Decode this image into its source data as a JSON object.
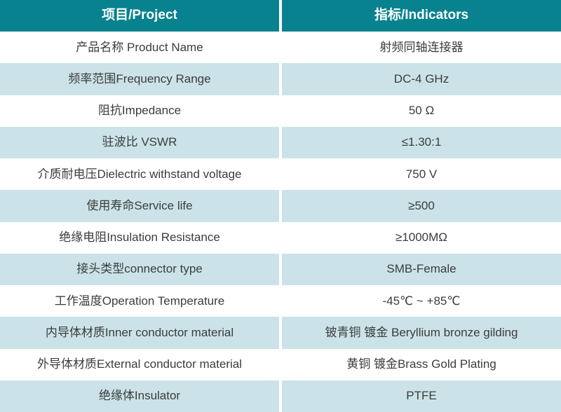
{
  "table": {
    "header": {
      "project": "项目/Project",
      "indicators": "指标/Indicators"
    },
    "rows": [
      {
        "project": "产品名称 Product Name",
        "indicator": "射频同轴连接器"
      },
      {
        "project": "频率范围Frequency Range",
        "indicator": "DC-4 GHz"
      },
      {
        "project": "阻抗Impedance",
        "indicator": "50 Ω"
      },
      {
        "project": "驻波比 VSWR",
        "indicator": "≤1.30:1"
      },
      {
        "project": "介质耐电压Dielectric withstand voltage",
        "indicator": "750 V"
      },
      {
        "project": "使用寿命Service life",
        "indicator": "≥500"
      },
      {
        "project": "绝缘电阻Insulation Resistance",
        "indicator": "≥1000MΩ"
      },
      {
        "project": "接头类型connector type",
        "indicator": "SMB-Female"
      },
      {
        "project": "工作温度Operation Temperature",
        "indicator": "-45℃ ~ +85℃"
      },
      {
        "project": "内导体材质Inner conductor material",
        "indicator": "铍青铜 镀金 Beryllium bronze gilding"
      },
      {
        "project": "外导体材质External conductor material",
        "indicator": "黄铜 镀金Brass Gold Plating"
      },
      {
        "project": "绝缘体Insulator",
        "indicator": "PTFE"
      }
    ],
    "colors": {
      "header_bg": "#08828F",
      "alt_row_bg": "#CBE3E8",
      "row_bg": "#FFFFFF",
      "header_text": "#FFFFFF",
      "body_text": "#3C3C3C",
      "divider": "#FFFFFF"
    }
  }
}
